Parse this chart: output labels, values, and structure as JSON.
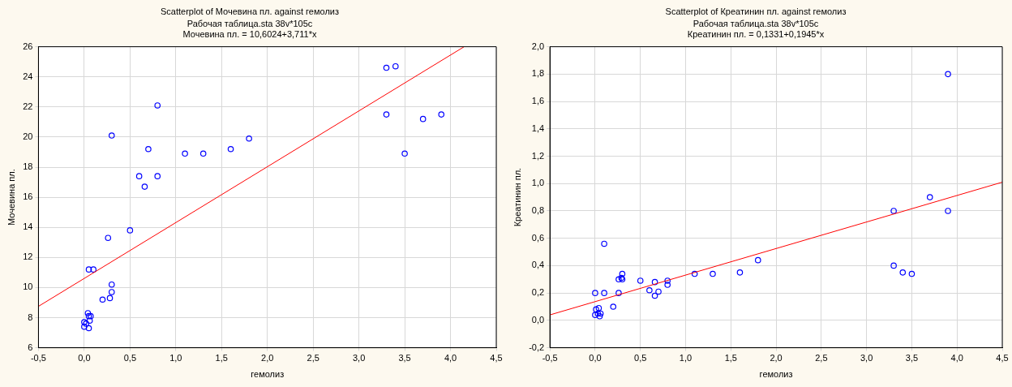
{
  "chart_data": [
    {
      "type": "scatter",
      "title": "Scatterplot of Мочевина пл. against гемолиз",
      "subtitle": "Рабочая таблица.sta 38v*105c",
      "annotations": [
        "Мочевина пл. = 10,6024+3,711*x"
      ],
      "xlabel": "гемолиз",
      "ylabel": "Мочевина пл.",
      "grid": true,
      "legend": false,
      "marker": "circle",
      "xlim": [
        -0.5,
        4.5
      ],
      "xticks": [
        {
          "value": -0.5,
          "label": "-0,5"
        },
        {
          "value": 0,
          "label": "0,0"
        },
        {
          "value": 0.5,
          "label": "0,5"
        },
        {
          "value": 1,
          "label": "1,0"
        },
        {
          "value": 1.5,
          "label": "1,5"
        },
        {
          "value": 2,
          "label": "2,0"
        },
        {
          "value": 2.5,
          "label": "2,5"
        },
        {
          "value": 3,
          "label": "3,0"
        },
        {
          "value": 3.5,
          "label": "3,5"
        },
        {
          "value": 4,
          "label": "4,0"
        },
        {
          "value": 4.5,
          "label": "4,5"
        }
      ],
      "ylim": [
        6,
        26
      ],
      "yticks": [
        6,
        8,
        10,
        12,
        14,
        16,
        18,
        20,
        22,
        24,
        26
      ],
      "series": [
        {
          "type": "scatter",
          "color": "#0000ff",
          "x": [
            0,
            0,
            0.02,
            0.04,
            0.05,
            0.05,
            0.06,
            0.07,
            0.05,
            0.1,
            0.2,
            0.26,
            0.28,
            0.3,
            0.3,
            0.3,
            0.5,
            0.6,
            0.66,
            0.7,
            0.8,
            0.8,
            1.1,
            1.3,
            1.6,
            1.8,
            3.3,
            3.4,
            3.3,
            3.5,
            3.7,
            3.9
          ],
          "values": [
            7.4,
            7.7,
            7.6,
            8.3,
            7.3,
            8.1,
            7.8,
            8.1,
            11.2,
            11.2,
            9.2,
            13.3,
            9.3,
            9.7,
            10.2,
            20.1,
            13.8,
            17.4,
            16.7,
            19.2,
            22.1,
            17.4,
            18.9,
            18.9,
            19.2,
            19.9,
            24.6,
            24.7,
            21.5,
            18.9,
            21.2,
            21.5
          ]
        },
        {
          "type": "line",
          "color": "#ff0000",
          "marker": "none",
          "x": [
            -0.5,
            4.149
          ],
          "values": [
            8.75,
            26
          ]
        }
      ]
    },
    {
      "type": "scatter",
      "title": "Scatterplot of Креатинин пл. against гемолиз",
      "subtitle": "Рабочая таблица.sta 38v*105c",
      "annotations": [
        "Креатинин пл. = 0,1331+0,1945*x"
      ],
      "xlabel": "гемолиз",
      "ylabel": "Креатинин пл.",
      "grid": true,
      "legend": false,
      "marker": "circle",
      "xlim": [
        -0.5,
        4.5
      ],
      "xticks": [
        {
          "value": -0.5,
          "label": "-0,5"
        },
        {
          "value": 0,
          "label": "0,0"
        },
        {
          "value": 0.5,
          "label": "0,5"
        },
        {
          "value": 1,
          "label": "1,0"
        },
        {
          "value": 1.5,
          "label": "1,5"
        },
        {
          "value": 2,
          "label": "2,0"
        },
        {
          "value": 2.5,
          "label": "2,5"
        },
        {
          "value": 3,
          "label": "3,0"
        },
        {
          "value": 3.5,
          "label": "3,5"
        },
        {
          "value": 4,
          "label": "4,0"
        },
        {
          "value": 4.5,
          "label": "4,5"
        }
      ],
      "ylim": [
        -0.2,
        2
      ],
      "yticks": [
        {
          "value": -0.2,
          "label": "-0,2"
        },
        {
          "value": 0,
          "label": "0,0"
        },
        {
          "value": 0.2,
          "label": "0,2"
        },
        {
          "value": 0.4,
          "label": "0,4"
        },
        {
          "value": 0.6,
          "label": "0,6"
        },
        {
          "value": 0.8,
          "label": "0,8"
        },
        {
          "value": 1,
          "label": "1,0"
        },
        {
          "value": 1.2,
          "label": "1,2"
        },
        {
          "value": 1.4,
          "label": "1,4"
        },
        {
          "value": 1.6,
          "label": "1,6"
        },
        {
          "value": 1.8,
          "label": "1,8"
        },
        {
          "value": 2,
          "label": "2,0"
        }
      ],
      "series": [
        {
          "type": "scatter",
          "color": "#0000ff",
          "x": [
            0,
            0,
            0.01,
            0.04,
            0.03,
            0.05,
            0.06,
            0.1,
            0.1,
            0.2,
            0.26,
            0.26,
            0.3,
            0.3,
            0.29,
            0.5,
            0.6,
            0.66,
            0.66,
            0.7,
            0.8,
            0.8,
            1.1,
            1.3,
            1.6,
            1.8,
            3.3,
            3.3,
            3.4,
            3.5,
            3.7,
            3.9,
            3.9
          ],
          "values": [
            0.2,
            0.04,
            0.08,
            0.09,
            0.05,
            0.03,
            0.05,
            0.56,
            0.2,
            0.1,
            0.3,
            0.2,
            0.34,
            0.3,
            0.31,
            0.29,
            0.22,
            0.28,
            0.18,
            0.21,
            0.29,
            0.26,
            0.34,
            0.34,
            0.35,
            0.44,
            0.8,
            0.4,
            0.35,
            0.34,
            0.9,
            0.8,
            1.8
          ]
        },
        {
          "type": "line",
          "color": "#ff0000",
          "marker": "none",
          "x": [
            -0.5,
            4.5
          ],
          "values": [
            0.04,
            1.01
          ]
        }
      ]
    }
  ]
}
